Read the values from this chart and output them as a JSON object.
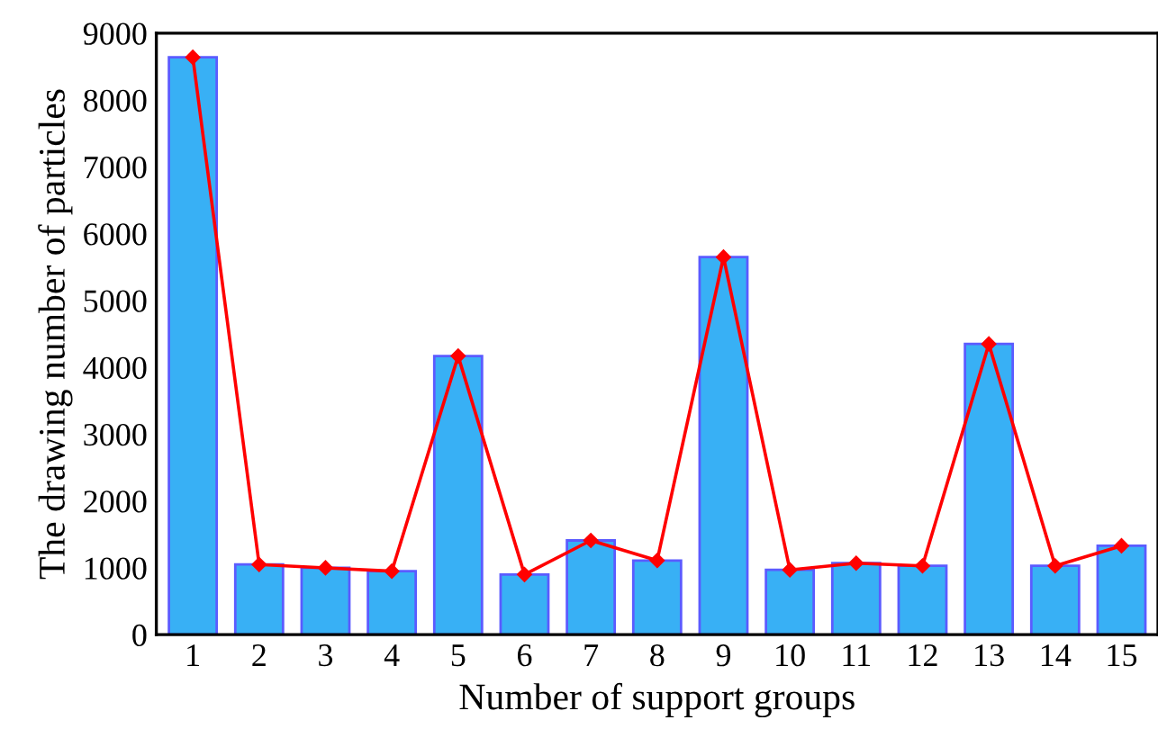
{
  "chart_data": {
    "type": "bar",
    "xlabel": "Number of support groups",
    "ylabel": "The drawing number of particles",
    "categories": [
      "1",
      "2",
      "3",
      "4",
      "5",
      "6",
      "7",
      "8",
      "9",
      "10",
      "11",
      "12",
      "13",
      "14",
      "15"
    ],
    "series": [
      {
        "color": "#38b0f5",
        "values": [
          8640,
          1050,
          1000,
          950,
          4170,
          900,
          1410,
          1110,
          5650,
          970,
          1070,
          1030,
          4350,
          1030,
          1330
        ]
      },
      {
        "type": "line",
        "color": "#ff0000",
        "marker": "diamond",
        "line_style": "solid",
        "values": [
          8640,
          1050,
          1000,
          950,
          4170,
          900,
          1410,
          1110,
          5650,
          970,
          1070,
          1030,
          4350,
          1030,
          1330
        ]
      }
    ],
    "ylim": [
      0,
      9000
    ],
    "yticks": [
      0,
      1000,
      2000,
      3000,
      4000,
      5000,
      6000,
      7000,
      8000,
      9000
    ],
    "grid": false,
    "legend": false
  }
}
